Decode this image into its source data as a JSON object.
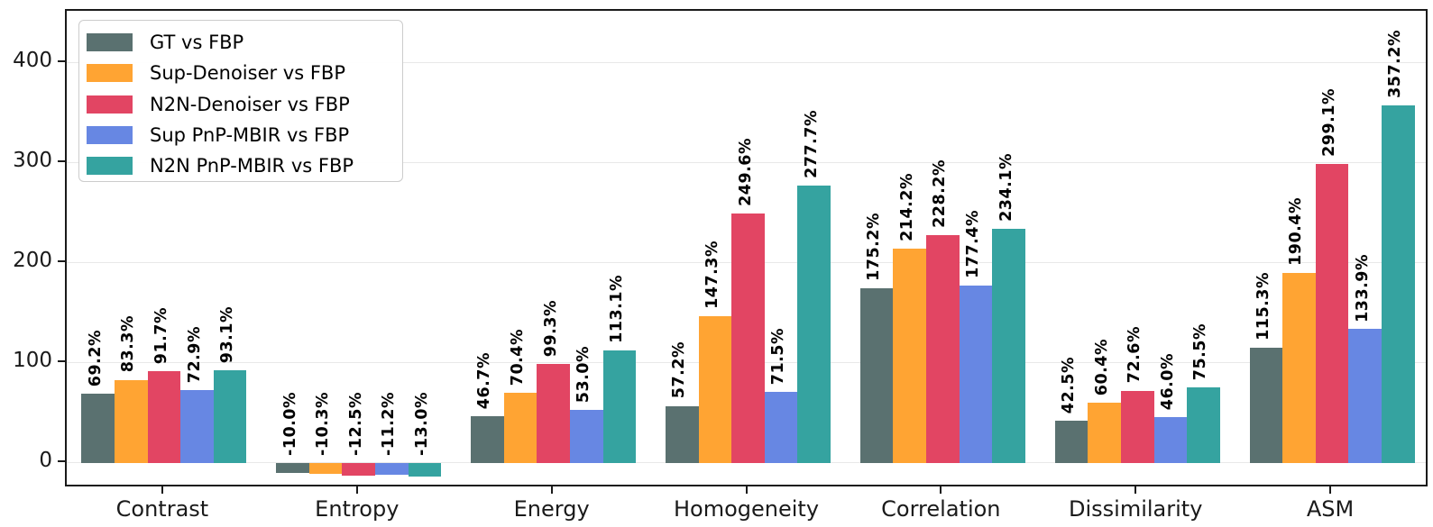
{
  "chart_data": {
    "type": "bar",
    "title": "",
    "xlabel": "",
    "ylabel": "",
    "categories": [
      "Contrast",
      "Entropy",
      "Energy",
      "Homogeneity",
      "Correlation",
      "Dissimilarity",
      "ASM"
    ],
    "series": [
      {
        "name": "GT vs FBP",
        "color": "#5a7170",
        "values": [
          69.2,
          -10.0,
          46.7,
          57.2,
          175.2,
          42.5,
          115.3
        ]
      },
      {
        "name": "Sup-Denoiser vs FBP",
        "color": "#ffa433",
        "values": [
          83.3,
          -10.3,
          70.4,
          147.3,
          214.2,
          60.4,
          190.4
        ]
      },
      {
        "name": "N2N-Denoiser vs FBP",
        "color": "#e24563",
        "values": [
          91.7,
          -12.5,
          99.3,
          249.6,
          228.2,
          72.6,
          299.1
        ]
      },
      {
        "name": "Sup PnP-MBIR vs FBP",
        "color": "#6787e3",
        "values": [
          72.9,
          -11.2,
          53.0,
          71.5,
          177.4,
          46.0,
          133.9
        ]
      },
      {
        "name": "N2N PnP-MBIR vs FBP",
        "color": "#35a3a0",
        "values": [
          93.1,
          -13.0,
          113.1,
          277.7,
          234.1,
          75.5,
          357.2
        ]
      }
    ],
    "bar_label_suffix": "%",
    "bar_label_decimals": 1,
    "bar_label_rotation_deg": 90,
    "yticks": [
      0,
      100,
      200,
      300,
      400
    ],
    "ylim": [
      -25,
      452
    ],
    "grid": "horizontal",
    "legend_position": "upper-left",
    "colors": {
      "spine": "#1a1a1a",
      "gridline": "#e8e8e8",
      "text": "#000000",
      "background": "#ffffff"
    }
  }
}
